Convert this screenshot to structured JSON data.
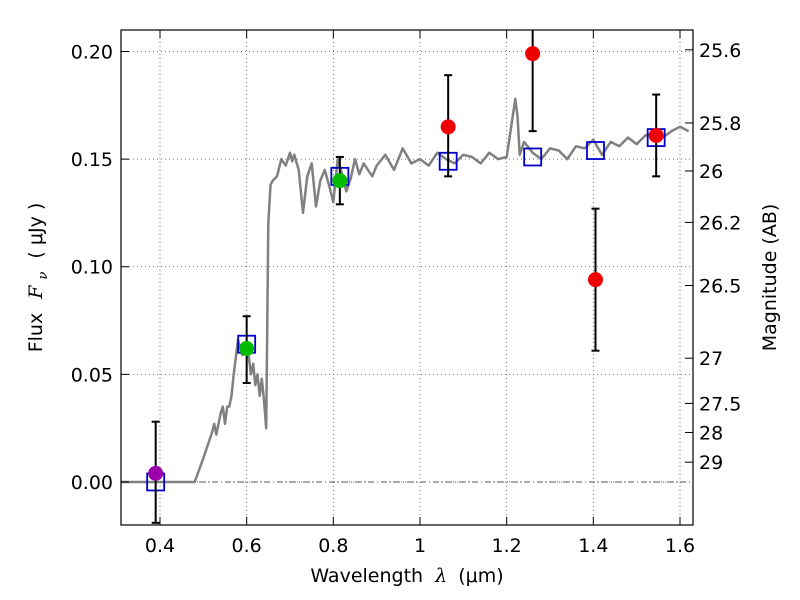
{
  "chart_data": {
    "type": "scatter",
    "title": "",
    "xlabel": {
      "pre": "Wavelength",
      "sym": "λ",
      "unit": "(μm)"
    },
    "ylabel": {
      "pre": "Flux",
      "sym": "F",
      "sub": "ν",
      "unit": "( μJy )"
    },
    "y2label": "Magnitude (AB)",
    "xlim": [
      0.31,
      1.63
    ],
    "ylim": [
      -0.02,
      0.21
    ],
    "grid": true,
    "x_ticks": [
      {
        "value": 0.4,
        "label": "0.4"
      },
      {
        "value": 0.6,
        "label": "0.6"
      },
      {
        "value": 0.8,
        "label": "0.8"
      },
      {
        "value": 1.0,
        "label": "1"
      },
      {
        "value": 1.2,
        "label": "1.2"
      },
      {
        "value": 1.4,
        "label": "1.4"
      },
      {
        "value": 1.6,
        "label": "1.6"
      }
    ],
    "y_ticks": [
      {
        "value": 0.0,
        "label": "0.00"
      },
      {
        "value": 0.05,
        "label": "0.05"
      },
      {
        "value": 0.1,
        "label": "0.10"
      },
      {
        "value": 0.15,
        "label": "0.15"
      },
      {
        "value": 0.2,
        "label": "0.20"
      }
    ],
    "y2_ticks": [
      {
        "flux": 0.2008,
        "label": "25.6"
      },
      {
        "flux": 0.1668,
        "label": "25.8"
      },
      {
        "flux": 0.1445,
        "label": "26"
      },
      {
        "flux": 0.1206,
        "label": "26.2"
      },
      {
        "flux": 0.0913,
        "label": "26.5"
      },
      {
        "flux": 0.0575,
        "label": "27"
      },
      {
        "flux": 0.0365,
        "label": "27.5"
      },
      {
        "flux": 0.023,
        "label": "28"
      },
      {
        "flux": 0.0092,
        "label": "29"
      }
    ],
    "zero_line": 0.0,
    "model_spectrum": {
      "color": "#808080",
      "x": [
        0.31,
        0.48,
        0.5,
        0.52,
        0.525,
        0.53,
        0.54,
        0.545,
        0.55,
        0.555,
        0.56,
        0.565,
        0.57,
        0.58,
        0.585,
        0.59,
        0.6,
        0.605,
        0.61,
        0.615,
        0.62,
        0.625,
        0.63,
        0.635,
        0.64,
        0.645,
        0.65,
        0.655,
        0.66,
        0.67,
        0.68,
        0.69,
        0.7,
        0.705,
        0.71,
        0.72,
        0.73,
        0.74,
        0.75,
        0.76,
        0.77,
        0.78,
        0.79,
        0.8,
        0.81,
        0.82,
        0.83,
        0.84,
        0.85,
        0.86,
        0.87,
        0.88,
        0.89,
        0.9,
        0.92,
        0.94,
        0.96,
        0.98,
        1.0,
        1.02,
        1.04,
        1.06,
        1.08,
        1.1,
        1.12,
        1.14,
        1.16,
        1.18,
        1.2,
        1.22,
        1.225,
        1.23,
        1.24,
        1.26,
        1.28,
        1.3,
        1.32,
        1.34,
        1.36,
        1.38,
        1.4,
        1.42,
        1.44,
        1.46,
        1.48,
        1.5,
        1.52,
        1.54,
        1.56,
        1.58,
        1.6,
        1.62
      ],
      "y": [
        0.0,
        0.0,
        0.011,
        0.023,
        0.027,
        0.022,
        0.032,
        0.035,
        0.027,
        0.035,
        0.035,
        0.04,
        0.05,
        0.066,
        0.062,
        0.059,
        0.062,
        0.058,
        0.05,
        0.055,
        0.045,
        0.05,
        0.04,
        0.048,
        0.038,
        0.025,
        0.12,
        0.138,
        0.14,
        0.142,
        0.15,
        0.147,
        0.153,
        0.149,
        0.152,
        0.145,
        0.125,
        0.142,
        0.148,
        0.128,
        0.14,
        0.145,
        0.138,
        0.13,
        0.15,
        0.143,
        0.135,
        0.141,
        0.15,
        0.143,
        0.148,
        0.145,
        0.142,
        0.147,
        0.152,
        0.145,
        0.155,
        0.148,
        0.15,
        0.147,
        0.153,
        0.15,
        0.148,
        0.152,
        0.151,
        0.148,
        0.153,
        0.15,
        0.151,
        0.178,
        0.17,
        0.152,
        0.158,
        0.153,
        0.15,
        0.155,
        0.154,
        0.15,
        0.156,
        0.155,
        0.159,
        0.152,
        0.158,
        0.156,
        0.16,
        0.157,
        0.161,
        0.162,
        0.16,
        0.163,
        0.165,
        0.163
      ]
    },
    "model_boxes": {
      "color": "#0000cc",
      "points": [
        {
          "x": 0.39,
          "y": 0.0
        },
        {
          "x": 0.6,
          "y": 0.064
        },
        {
          "x": 0.815,
          "y": 0.142
        },
        {
          "x": 1.065,
          "y": 0.149
        },
        {
          "x": 1.26,
          "y": 0.151
        },
        {
          "x": 1.405,
          "y": 0.154
        },
        {
          "x": 1.545,
          "y": 0.16
        }
      ]
    },
    "observations": [
      {
        "x": 0.39,
        "y": 0.004,
        "err_low": -0.019,
        "err_high": 0.028,
        "color": "#9900aa"
      },
      {
        "x": 0.6,
        "y": 0.062,
        "err_low": 0.046,
        "err_high": 0.077,
        "color": "#00bb00"
      },
      {
        "x": 0.815,
        "y": 0.14,
        "err_low": 0.129,
        "err_high": 0.151,
        "color": "#00bb00"
      },
      {
        "x": 1.065,
        "y": 0.165,
        "err_low": 0.142,
        "err_high": 0.189,
        "color": "#ee0000"
      },
      {
        "x": 1.26,
        "y": 0.199,
        "err_low": 0.163,
        "err_high": 0.215,
        "color": "#ee0000"
      },
      {
        "x": 1.405,
        "y": 0.094,
        "err_low": 0.061,
        "err_high": 0.127,
        "color": "#ee0000"
      },
      {
        "x": 1.545,
        "y": 0.161,
        "err_low": 0.142,
        "err_high": 0.18,
        "color": "#ee0000"
      }
    ]
  }
}
